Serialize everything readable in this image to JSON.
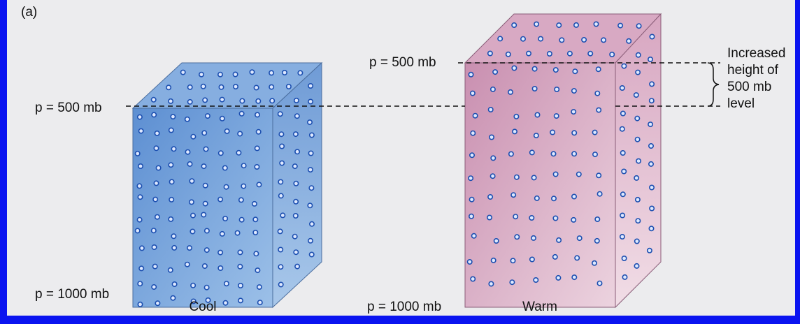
{
  "panel_label": "(a)",
  "columns": [
    {
      "name": "Cool",
      "top_label": "p = 500 mb",
      "bottom_label": "p = 1000 mb"
    },
    {
      "name": "Warm",
      "top_label": "p = 500 mb",
      "bottom_label": "p = 1000 mb"
    }
  ],
  "annotation": [
    "Increased",
    "height of",
    "500 mb",
    "level"
  ]
}
